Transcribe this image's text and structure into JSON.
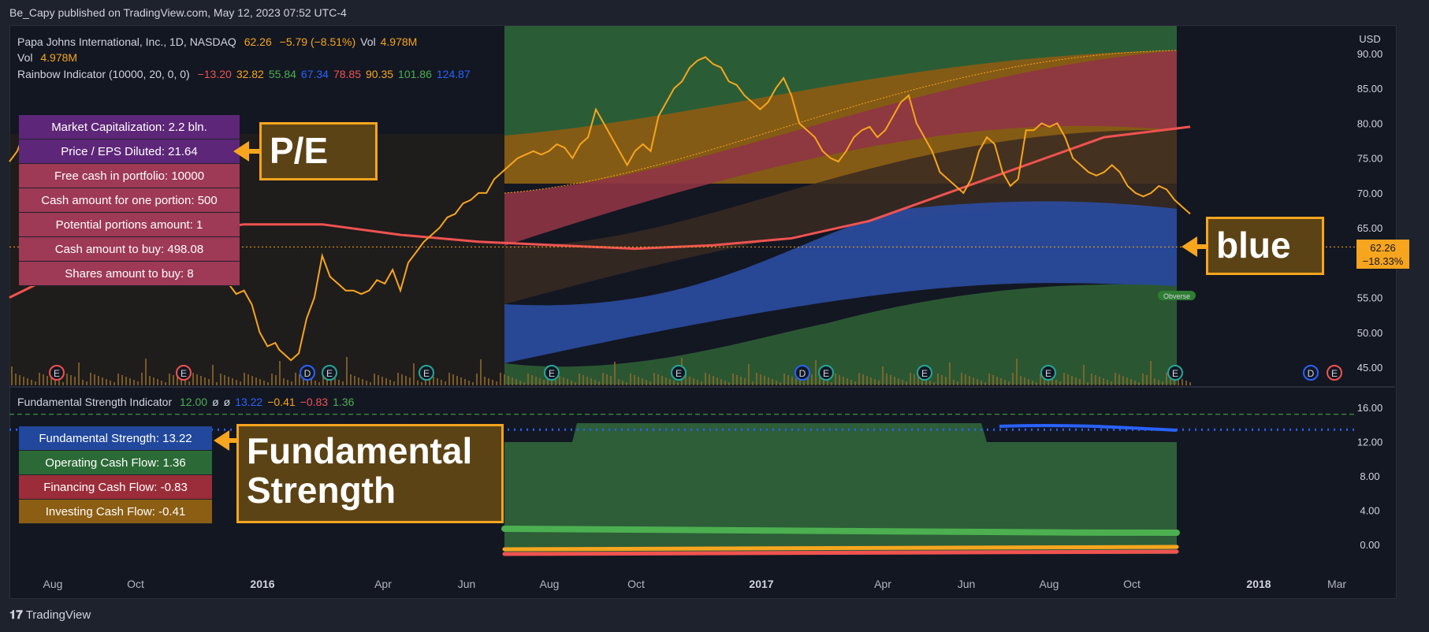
{
  "header": {
    "published": "Be_Capy published on TradingView.com, May 12, 2023 07:52 UTC-4"
  },
  "legend": {
    "symbol_line": {
      "name": "Papa Johns International, Inc., 1D, NASDAQ",
      "close": "62.26",
      "change": "−5.79 (−8.51%)",
      "vol_label": "Vol",
      "vol_value": "4.978M"
    },
    "vol_line": {
      "label": "Vol",
      "value": "4.978M"
    },
    "rainbow": {
      "name": "Rainbow Indicator (10000, 20, 0, 0)",
      "values": [
        "−13.20",
        "32.82",
        "55.84",
        "67.34",
        "78.85",
        "90.35",
        "101.86",
        "124.87"
      ]
    },
    "fsi": {
      "name": "Fundamental Strength Indicator",
      "values": [
        "12.00",
        "ø",
        "ø",
        "13.22",
        "−0.41",
        "−0.83",
        "1.36"
      ]
    }
  },
  "colors": {
    "price_line": "#f7a51e",
    "rainbow_red_line": "#f05350",
    "blue_band": "#2b4da1",
    "green_band": "#2e5e34",
    "orange_band": "#8a5a10",
    "red_band": "#8e3340",
    "green_zone": "#336b3d",
    "accent": "#f7a51e",
    "info_purple": "#5d2678",
    "info_red": "#9e3956",
    "fs_blue": "#21489c",
    "fs_green": "#2b6a36",
    "fs_red": "#9b2d3a",
    "fs_orange": "#8c5e13"
  },
  "info_box_top": [
    "Market Capitalization: 2.2 bln.",
    "Price / EPS Diluted: 21.64",
    "Free cash in portfolio: 10000",
    "Cash amount for one portion: 500",
    "Potential portions amount: 1",
    "Cash amount to buy: 498.08",
    "Shares amount to buy: 8"
  ],
  "info_box_bottom": [
    "Fundamental Strength: 13.22",
    "Operating Cash Flow: 1.36",
    "Financing Cash Flow: -0.83",
    "Investing Cash Flow: -0.41"
  ],
  "callouts": {
    "pe": "P/E",
    "blue": "blue",
    "fundamental": "Fundamental Strength"
  },
  "price_tag": {
    "price": "62.26",
    "pct": "−18.33%"
  },
  "badge_obverse": "Obverse",
  "footer": {
    "brand": "TradingView"
  },
  "chart_data": [
    {
      "type": "line",
      "title": "Papa Johns International, Inc., 1D, NASDAQ",
      "currency": "USD",
      "x_ticks": [
        "Aug",
        "Oct",
        "2016",
        "Apr",
        "Jun",
        "Aug",
        "Oct",
        "2017",
        "Apr",
        "Jun",
        "Aug",
        "Oct",
        "2018",
        "Mar"
      ],
      "y_ticks": [
        45,
        50,
        55,
        60,
        65,
        70,
        75,
        80,
        85,
        90
      ],
      "ylim": [
        43.5,
        91.5
      ],
      "series": [
        {
          "name": "Price",
          "color": "#f7a51e",
          "t": [
            0,
            10,
            20,
            30,
            40,
            50,
            55,
            60,
            70,
            80,
            90,
            100,
            110,
            120,
            130,
            140,
            150,
            160,
            168,
            172,
            180,
            190,
            200,
            205,
            210,
            220,
            230,
            240,
            250,
            260,
            270,
            280,
            290,
            300,
            310,
            320,
            330,
            340,
            345,
            350,
            360,
            370,
            380,
            390,
            400,
            410,
            420,
            430,
            440,
            450,
            460,
            470,
            480,
            490,
            500,
            505,
            510,
            520,
            530,
            540,
            550,
            560,
            570,
            580,
            590,
            600,
            610,
            620,
            630,
            640,
            650,
            660,
            670,
            680,
            690,
            700,
            710,
            720,
            730,
            740,
            750,
            760,
            770,
            780,
            790,
            800,
            810,
            820,
            830,
            840,
            850,
            860,
            870,
            880,
            890,
            900,
            910,
            920,
            930,
            940,
            950,
            960,
            970,
            980,
            990,
            1000,
            1010,
            1020,
            1030,
            1040,
            1050,
            1060,
            1070,
            1080,
            1090,
            1100,
            1110,
            1120,
            1130,
            1140,
            1150,
            1160,
            1170,
            1180,
            1190,
            1200,
            1210,
            1220,
            1230,
            1240,
            1250,
            1260,
            1270,
            1280,
            1290,
            1300,
            1310,
            1320,
            1330,
            1340,
            1350,
            1360,
            1370,
            1380,
            1390,
            1400,
            1410,
            1420,
            1430,
            1440,
            1450,
            1460,
            1470,
            1480,
            1490,
            1500,
            1510
          ],
          "v": [
            74.5,
            76,
            79,
            76,
            75.5,
            77,
            76,
            73,
            73.5,
            71,
            70.5,
            74,
            69,
            70,
            69.5,
            71,
            70,
            71.5,
            69.8,
            69.5,
            71,
            70,
            73,
            75,
            74,
            68,
            62,
            59,
            57,
            58,
            58.5,
            57,
            55.5,
            56,
            54,
            50,
            48,
            48.5,
            47.5,
            47,
            46,
            47,
            52,
            55,
            61,
            58,
            57,
            56,
            56,
            55.5,
            56,
            57.5,
            57,
            59,
            56,
            58,
            60,
            61.5,
            63,
            64,
            65,
            66.5,
            67,
            68.5,
            69,
            70,
            70,
            72,
            73,
            74,
            75,
            75.5,
            76,
            75.5,
            76,
            77,
            76.5,
            75,
            77,
            78,
            82,
            80,
            78,
            76,
            74,
            76,
            77,
            76,
            81,
            83,
            85,
            86,
            88,
            89,
            89.5,
            88.5,
            88,
            86,
            85.5,
            84,
            83,
            82,
            83,
            85,
            86.5,
            84,
            80,
            79,
            78,
            76,
            75,
            74.5,
            76,
            78,
            79,
            79.5,
            78,
            79,
            81,
            83,
            84,
            80,
            78,
            76,
            73,
            72,
            71,
            70,
            72,
            76,
            78,
            77,
            73,
            71,
            72,
            79,
            79,
            80,
            79.5,
            80,
            78,
            75,
            74,
            73,
            72.5,
            73,
            74,
            73,
            71,
            70,
            69.5,
            70,
            71,
            70.5,
            69,
            68,
            67,
            62.3
          ]
        },
        {
          "name": "Rainbow 78.85",
          "color": "#f05350",
          "t": [
            0,
            100,
            200,
            300,
            400,
            500,
            600,
            700,
            800,
            900,
            1000,
            1100,
            1200,
            1300,
            1400,
            1510
          ],
          "v": [
            55,
            60.5,
            64,
            65.5,
            65.5,
            64,
            63,
            62.5,
            62,
            62.5,
            63.5,
            66,
            70,
            74,
            78,
            79.5
          ]
        }
      ],
      "x_domain": [
        0,
        1510
      ],
      "note_points": "t is trading-day index along the x axis"
    },
    {
      "type": "area",
      "title": "Fundamental Strength Indicator",
      "y_ticks": [
        0,
        4,
        8,
        12,
        16
      ],
      "ylim": [
        -1.5,
        17.5
      ],
      "series": [
        {
          "name": "Fundamental Strength",
          "value": 13.22
        },
        {
          "name": "Operating Cash Flow",
          "value": 1.36
        },
        {
          "name": "Financing Cash Flow",
          "value": -0.83
        },
        {
          "name": "Investing Cash Flow",
          "value": -0.41
        }
      ]
    }
  ]
}
